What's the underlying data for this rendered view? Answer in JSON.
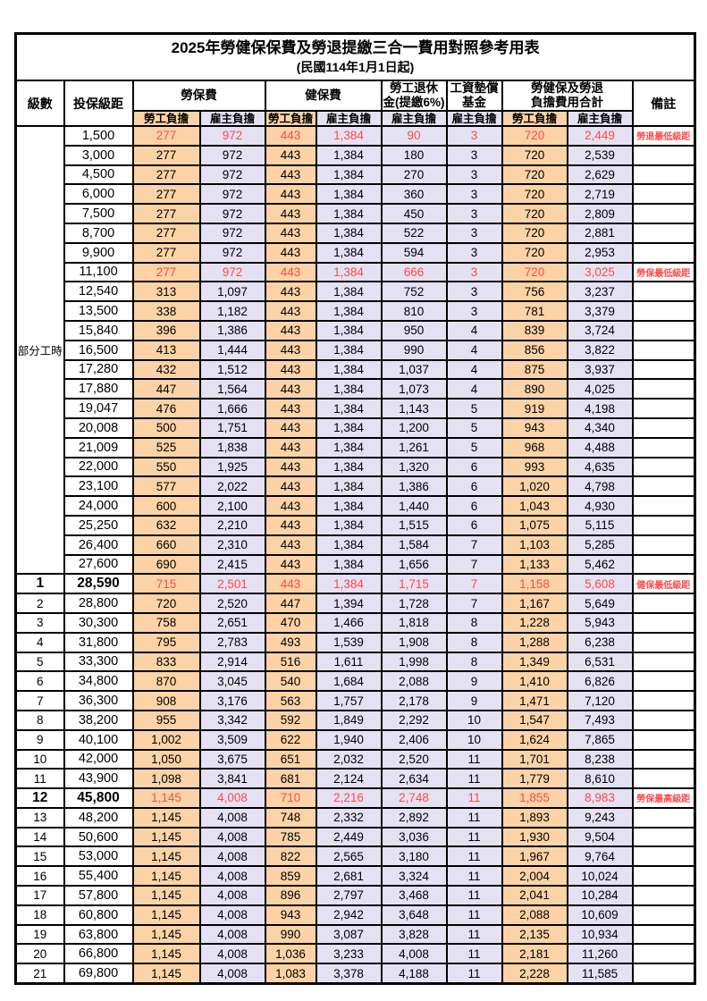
{
  "title": "2025年勞健保保費及勞退提繳三合一費用對照參考用表",
  "subtitle": "(民國114年1月1日起)",
  "colors": {
    "worker_bg": "#FBD3A6",
    "employer_bg": "#E4E1F2",
    "highlight_text": "#FF4A4A",
    "border": "#000000"
  },
  "header": {
    "level": "級數",
    "bracket": "投保級距",
    "labor_insurance": "勞保費",
    "health_insurance": "健保費",
    "pension_line1": "勞工退休",
    "pension_line2": "金(提繳6%)",
    "wage_fund_line1": "工資墊償",
    "wage_fund_line2": "基金",
    "total_line1": "勞健保及勞退",
    "total_line2": "負擔費用合計",
    "remark": "備註",
    "worker_label": "勞工負擔",
    "employer_label": "雇主負擔"
  },
  "table": {
    "part_time_label": "部分工時",
    "rows": [
      {
        "level": "部分工時",
        "level_rowspan": 23,
        "bracket": "1,500",
        "fees": [
          "277",
          "972",
          "443",
          "1,384",
          "90",
          "3",
          "720",
          "2,449"
        ],
        "remark": "勞退最低級距",
        "red": true,
        "bold": false
      },
      {
        "bracket": "3,000",
        "fees": [
          "277",
          "972",
          "443",
          "1,384",
          "180",
          "3",
          "720",
          "2,539"
        ],
        "remark": "",
        "red": false,
        "bold": false
      },
      {
        "bracket": "4,500",
        "fees": [
          "277",
          "972",
          "443",
          "1,384",
          "270",
          "3",
          "720",
          "2,629"
        ],
        "remark": "",
        "red": false,
        "bold": false
      },
      {
        "bracket": "6,000",
        "fees": [
          "277",
          "972",
          "443",
          "1,384",
          "360",
          "3",
          "720",
          "2,719"
        ],
        "remark": "",
        "red": false,
        "bold": false
      },
      {
        "bracket": "7,500",
        "fees": [
          "277",
          "972",
          "443",
          "1,384",
          "450",
          "3",
          "720",
          "2,809"
        ],
        "remark": "",
        "red": false,
        "bold": false
      },
      {
        "bracket": "8,700",
        "fees": [
          "277",
          "972",
          "443",
          "1,384",
          "522",
          "3",
          "720",
          "2,881"
        ],
        "remark": "",
        "red": false,
        "bold": false
      },
      {
        "bracket": "9,900",
        "fees": [
          "277",
          "972",
          "443",
          "1,384",
          "594",
          "3",
          "720",
          "2,953"
        ],
        "remark": "",
        "red": false,
        "bold": false
      },
      {
        "bracket": "11,100",
        "fees": [
          "277",
          "972",
          "443",
          "1,384",
          "666",
          "3",
          "720",
          "3,025"
        ],
        "remark": "勞保最低級距",
        "red": true,
        "bold": false
      },
      {
        "bracket": "12,540",
        "fees": [
          "313",
          "1,097",
          "443",
          "1,384",
          "752",
          "3",
          "756",
          "3,237"
        ],
        "remark": "",
        "red": false,
        "bold": false
      },
      {
        "bracket": "13,500",
        "fees": [
          "338",
          "1,182",
          "443",
          "1,384",
          "810",
          "3",
          "781",
          "3,379"
        ],
        "remark": "",
        "red": false,
        "bold": false
      },
      {
        "bracket": "15,840",
        "fees": [
          "396",
          "1,386",
          "443",
          "1,384",
          "950",
          "4",
          "839",
          "3,724"
        ],
        "remark": "",
        "red": false,
        "bold": false
      },
      {
        "bracket": "16,500",
        "fees": [
          "413",
          "1,444",
          "443",
          "1,384",
          "990",
          "4",
          "856",
          "3,822"
        ],
        "remark": "",
        "red": false,
        "bold": false
      },
      {
        "bracket": "17,280",
        "fees": [
          "432",
          "1,512",
          "443",
          "1,384",
          "1,037",
          "4",
          "875",
          "3,937"
        ],
        "remark": "",
        "red": false,
        "bold": false
      },
      {
        "bracket": "17,880",
        "fees": [
          "447",
          "1,564",
          "443",
          "1,384",
          "1,073",
          "4",
          "890",
          "4,025"
        ],
        "remark": "",
        "red": false,
        "bold": false
      },
      {
        "bracket": "19,047",
        "fees": [
          "476",
          "1,666",
          "443",
          "1,384",
          "1,143",
          "5",
          "919",
          "4,198"
        ],
        "remark": "",
        "red": false,
        "bold": false
      },
      {
        "bracket": "20,008",
        "fees": [
          "500",
          "1,751",
          "443",
          "1,384",
          "1,200",
          "5",
          "943",
          "4,340"
        ],
        "remark": "",
        "red": false,
        "bold": false
      },
      {
        "bracket": "21,009",
        "fees": [
          "525",
          "1,838",
          "443",
          "1,384",
          "1,261",
          "5",
          "968",
          "4,488"
        ],
        "remark": "",
        "red": false,
        "bold": false
      },
      {
        "bracket": "22,000",
        "fees": [
          "550",
          "1,925",
          "443",
          "1,384",
          "1,320",
          "6",
          "993",
          "4,635"
        ],
        "remark": "",
        "red": false,
        "bold": false
      },
      {
        "bracket": "23,100",
        "fees": [
          "577",
          "2,022",
          "443",
          "1,384",
          "1,386",
          "6",
          "1,020",
          "4,798"
        ],
        "remark": "",
        "red": false,
        "bold": false
      },
      {
        "bracket": "24,000",
        "fees": [
          "600",
          "2,100",
          "443",
          "1,384",
          "1,440",
          "6",
          "1,043",
          "4,930"
        ],
        "remark": "",
        "red": false,
        "bold": false
      },
      {
        "bracket": "25,250",
        "fees": [
          "632",
          "2,210",
          "443",
          "1,384",
          "1,515",
          "6",
          "1,075",
          "5,115"
        ],
        "remark": "",
        "red": false,
        "bold": false
      },
      {
        "bracket": "26,400",
        "fees": [
          "660",
          "2,310",
          "443",
          "1,384",
          "1,584",
          "7",
          "1,103",
          "5,285"
        ],
        "remark": "",
        "red": false,
        "bold": false
      },
      {
        "bracket": "27,600",
        "fees": [
          "690",
          "2,415",
          "443",
          "1,384",
          "1,656",
          "7",
          "1,133",
          "5,462"
        ],
        "remark": "",
        "red": false,
        "bold": false
      },
      {
        "level": "1",
        "bracket": "28,590",
        "fees": [
          "715",
          "2,501",
          "443",
          "1,384",
          "1,715",
          "7",
          "1,158",
          "5,608"
        ],
        "remark": "健保最低級距",
        "red": true,
        "bold": true
      },
      {
        "level": "2",
        "bracket": "28,800",
        "fees": [
          "720",
          "2,520",
          "447",
          "1,394",
          "1,728",
          "7",
          "1,167",
          "5,649"
        ],
        "remark": "",
        "red": false,
        "bold": false
      },
      {
        "level": "3",
        "bracket": "30,300",
        "fees": [
          "758",
          "2,651",
          "470",
          "1,466",
          "1,818",
          "8",
          "1,228",
          "5,943"
        ],
        "remark": "",
        "red": false,
        "bold": false
      },
      {
        "level": "4",
        "bracket": "31,800",
        "fees": [
          "795",
          "2,783",
          "493",
          "1,539",
          "1,908",
          "8",
          "1,288",
          "6,238"
        ],
        "remark": "",
        "red": false,
        "bold": false
      },
      {
        "level": "5",
        "bracket": "33,300",
        "fees": [
          "833",
          "2,914",
          "516",
          "1,611",
          "1,998",
          "8",
          "1,349",
          "6,531"
        ],
        "remark": "",
        "red": false,
        "bold": false
      },
      {
        "level": "6",
        "bracket": "34,800",
        "fees": [
          "870",
          "3,045",
          "540",
          "1,684",
          "2,088",
          "9",
          "1,410",
          "6,826"
        ],
        "remark": "",
        "red": false,
        "bold": false
      },
      {
        "level": "7",
        "bracket": "36,300",
        "fees": [
          "908",
          "3,176",
          "563",
          "1,757",
          "2,178",
          "9",
          "1,471",
          "7,120"
        ],
        "remark": "",
        "red": false,
        "bold": false
      },
      {
        "level": "8",
        "bracket": "38,200",
        "fees": [
          "955",
          "3,342",
          "592",
          "1,849",
          "2,292",
          "10",
          "1,547",
          "7,493"
        ],
        "remark": "",
        "red": false,
        "bold": false
      },
      {
        "level": "9",
        "bracket": "40,100",
        "fees": [
          "1,002",
          "3,509",
          "622",
          "1,940",
          "2,406",
          "10",
          "1,624",
          "7,865"
        ],
        "remark": "",
        "red": false,
        "bold": false
      },
      {
        "level": "10",
        "bracket": "42,000",
        "fees": [
          "1,050",
          "3,675",
          "651",
          "2,032",
          "2,520",
          "11",
          "1,701",
          "8,238"
        ],
        "remark": "",
        "red": false,
        "bold": false
      },
      {
        "level": "11",
        "bracket": "43,900",
        "fees": [
          "1,098",
          "3,841",
          "681",
          "2,124",
          "2,634",
          "11",
          "1,779",
          "8,610"
        ],
        "remark": "",
        "red": false,
        "bold": false
      },
      {
        "level": "12",
        "bracket": "45,800",
        "fees": [
          "1,145",
          "4,008",
          "710",
          "2,216",
          "2,748",
          "11",
          "1,855",
          "8,983"
        ],
        "remark": "勞保最高級距",
        "red": true,
        "bold": true
      },
      {
        "level": "13",
        "bracket": "48,200",
        "fees": [
          "1,145",
          "4,008",
          "748",
          "2,332",
          "2,892",
          "11",
          "1,893",
          "9,243"
        ],
        "remark": "",
        "red": false,
        "bold": false
      },
      {
        "level": "14",
        "bracket": "50,600",
        "fees": [
          "1,145",
          "4,008",
          "785",
          "2,449",
          "3,036",
          "11",
          "1,930",
          "9,504"
        ],
        "remark": "",
        "red": false,
        "bold": false
      },
      {
        "level": "15",
        "bracket": "53,000",
        "fees": [
          "1,145",
          "4,008",
          "822",
          "2,565",
          "3,180",
          "11",
          "1,967",
          "9,764"
        ],
        "remark": "",
        "red": false,
        "bold": false
      },
      {
        "level": "16",
        "bracket": "55,400",
        "fees": [
          "1,145",
          "4,008",
          "859",
          "2,681",
          "3,324",
          "11",
          "2,004",
          "10,024"
        ],
        "remark": "",
        "red": false,
        "bold": false
      },
      {
        "level": "17",
        "bracket": "57,800",
        "fees": [
          "1,145",
          "4,008",
          "896",
          "2,797",
          "3,468",
          "11",
          "2,041",
          "10,284"
        ],
        "remark": "",
        "red": false,
        "bold": false
      },
      {
        "level": "18",
        "bracket": "60,800",
        "fees": [
          "1,145",
          "4,008",
          "943",
          "2,942",
          "3,648",
          "11",
          "2,088",
          "10,609"
        ],
        "remark": "",
        "red": false,
        "bold": false
      },
      {
        "level": "19",
        "bracket": "63,800",
        "fees": [
          "1,145",
          "4,008",
          "990",
          "3,087",
          "3,828",
          "11",
          "2,135",
          "10,934"
        ],
        "remark": "",
        "red": false,
        "bold": false
      },
      {
        "level": "20",
        "bracket": "66,800",
        "fees": [
          "1,145",
          "4,008",
          "1,036",
          "3,233",
          "4,008",
          "11",
          "2,181",
          "11,260"
        ],
        "remark": "",
        "red": false,
        "bold": false
      },
      {
        "level": "21",
        "bracket": "69,800",
        "fees": [
          "1,145",
          "4,008",
          "1,083",
          "3,378",
          "4,188",
          "11",
          "2,228",
          "11,585"
        ],
        "remark": "",
        "red": false,
        "bold": false
      }
    ]
  }
}
